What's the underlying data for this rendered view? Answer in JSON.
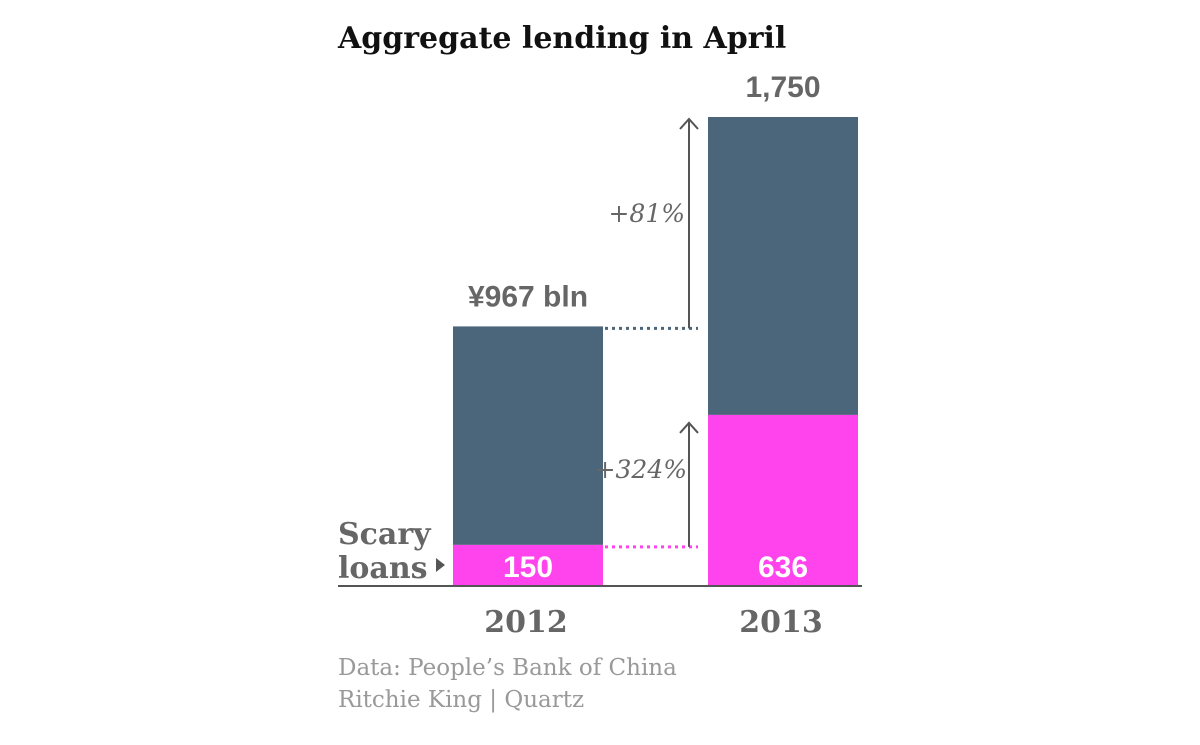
{
  "chart_data": {
    "type": "bar",
    "stacked": true,
    "title": "Aggregate lending in April",
    "categories": [
      "2012",
      "2013"
    ],
    "series": [
      {
        "name": "Scary loans",
        "values": [
          150,
          636
        ],
        "color": "#ff44ee"
      },
      {
        "values": [
          817,
          1114
        ],
        "color": "#4b657b"
      }
    ],
    "totals": [
      967,
      1750
    ],
    "total_labels": [
      "¥967 bln",
      "1,750"
    ],
    "segment_labels": [
      "150",
      "636"
    ],
    "change_labels": {
      "total": "+81%",
      "scary_loans": "+324%"
    },
    "series_label_lines": [
      "Scary",
      "loans"
    ],
    "ylim": [
      0,
      1750
    ],
    "xlabel": "",
    "ylabel": "",
    "grid": false,
    "legend": "none",
    "colors": {
      "total_bar": "#4b657b",
      "scary_loans": "#ff44ee",
      "text": "#666666",
      "title": "#111111",
      "axis": "#555555",
      "source": "#999999"
    }
  },
  "source": {
    "data_line": "Data: People’s Bank of China",
    "credit_line": "Ritchie King | Quartz"
  }
}
